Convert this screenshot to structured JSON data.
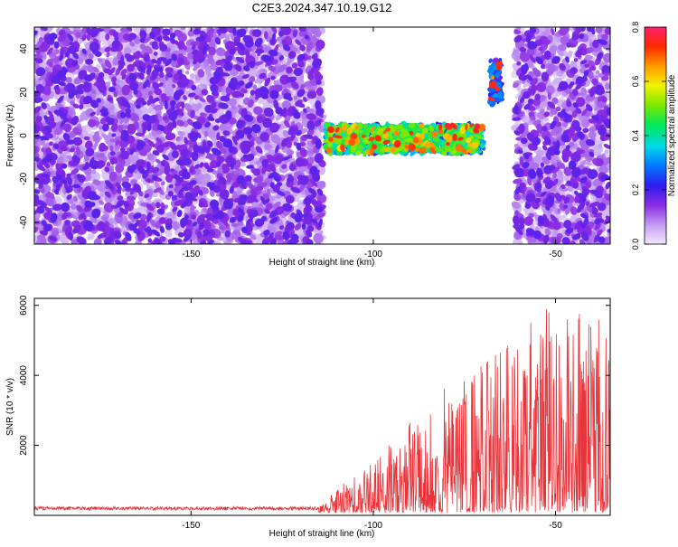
{
  "figure": {
    "title": "C2E3.2024.347.10.19.G12"
  },
  "chart_data": [
    {
      "type": "heatmap",
      "title": "",
      "xlabel": "Height of straight line (km)",
      "ylabel": "Frequency (Hz)",
      "xlim": [
        -193,
        -35
      ],
      "ylim": [
        -50,
        50
      ],
      "xticks": [
        -150,
        -100,
        -50
      ],
      "yticks": [
        -40,
        -20,
        0,
        20,
        40
      ],
      "colorbar": {
        "label": "Normalized spectral amplitude",
        "range": [
          0.0,
          0.8
        ],
        "ticks": [
          0.0,
          0.2,
          0.4,
          0.6,
          0.8
        ]
      },
      "regions": [
        {
          "name": "noise",
          "x_range": [
            -193,
            -114
          ],
          "f_range": [
            -50,
            50
          ],
          "amplitude": 0.05
        },
        {
          "name": "signal-band",
          "x_range": [
            -113,
            -70
          ],
          "f_range": [
            -8,
            5
          ],
          "amplitude": 0.5
        },
        {
          "name": "signal-blob",
          "x_range": [
            -68,
            -65
          ],
          "f_range": [
            15,
            35
          ],
          "amplitude": 0.3
        },
        {
          "name": "noise",
          "x_range": [
            -61,
            -35
          ],
          "f_range": [
            -50,
            50
          ],
          "amplitude": 0.05
        }
      ]
    },
    {
      "type": "line",
      "title": "",
      "xlabel": "Height of straight line (km)",
      "ylabel": "SNR (10 * v/v)",
      "xlim": [
        -193,
        -35
      ],
      "ylim": [
        0,
        6200
      ],
      "xticks": [
        -150,
        -100,
        -50
      ],
      "yticks": [
        2000,
        4000,
        6000
      ],
      "color": "#e8343a",
      "envelope": [
        {
          "x": -193,
          "y": 250
        },
        {
          "x": -115,
          "y": 250
        },
        {
          "x": -108,
          "y": 900
        },
        {
          "x": -100,
          "y": 1500
        },
        {
          "x": -90,
          "y": 2600
        },
        {
          "x": -80,
          "y": 3500
        },
        {
          "x": -70,
          "y": 4100
        },
        {
          "x": -60,
          "y": 5200
        },
        {
          "x": -50,
          "y": 5900
        },
        {
          "x": -35,
          "y": 5400
        }
      ]
    }
  ]
}
